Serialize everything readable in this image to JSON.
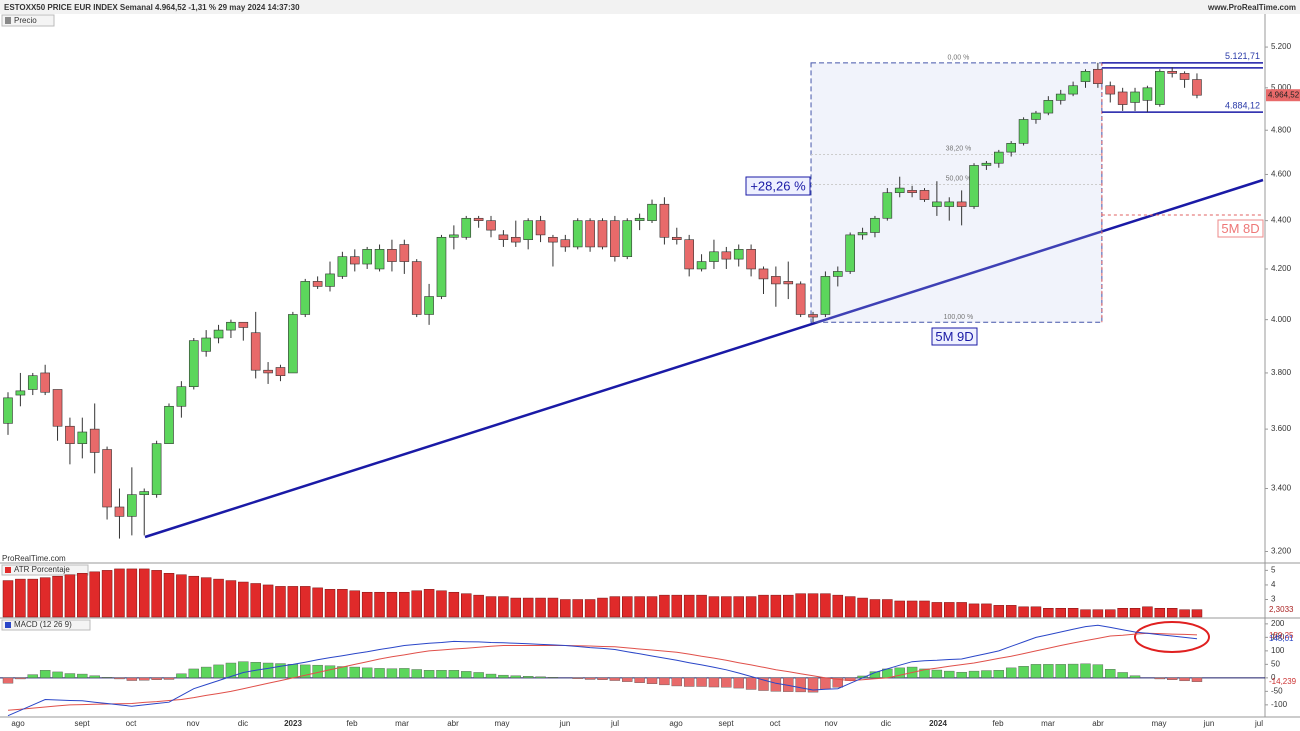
{
  "chart_data": [
    {
      "type": "candlestick",
      "title": "ESTOXX50 PRICE EUR INDEX Semanal 4.964,52 -1,31 % 29 may 2024 14:37:30",
      "source": "www.ProRealTime.com",
      "watermark": "ProRealTime.com",
      "series_label": "Precio",
      "up_color": "#5cd65c",
      "down_color": "#e86a6a",
      "log_scale": true,
      "ylim": [
        3180,
        5363
      ],
      "yticks": [
        {
          "value": 3200,
          "label": "3.200"
        },
        {
          "value": 3400,
          "label": "3.400"
        },
        {
          "value": 3600,
          "label": "3.600"
        },
        {
          "value": 3800,
          "label": "3.800"
        },
        {
          "value": 4000,
          "label": "4.000"
        },
        {
          "value": 4200,
          "label": "4.200"
        },
        {
          "value": 4400,
          "label": "4.400"
        },
        {
          "value": 4600,
          "label": "4.600"
        },
        {
          "value": 4800,
          "label": "4.800"
        },
        {
          "value": 5000,
          "label": "5.000"
        },
        {
          "value": 5200,
          "label": "5.200"
        }
      ],
      "x_labels": [
        "ago",
        "sept",
        "oct",
        "nov",
        "dic",
        "2023",
        "feb",
        "mar",
        "abr",
        "may",
        "jun",
        "jul",
        "ago",
        "sept",
        "oct",
        "nov",
        "dic",
        "2024",
        "feb",
        "mar",
        "abr",
        "may",
        "jun",
        "jul"
      ],
      "open": [
        3620,
        3720,
        3740,
        3800,
        3740,
        3610,
        3550,
        3600,
        3530,
        3340,
        3310,
        3380,
        3380,
        3550,
        3680,
        3750,
        3880,
        3930,
        3960,
        3990,
        3950,
        3810,
        3820,
        3800,
        4020,
        4150,
        4130,
        4170,
        4250,
        4220,
        4200,
        4280,
        4300,
        4230,
        4020,
        4090,
        4330,
        4330,
        4410,
        4400,
        4340,
        4330,
        4320,
        4400,
        4330,
        4320,
        4290,
        4400,
        4400,
        4400,
        4250,
        4400,
        4400,
        4470,
        4330,
        4320,
        4200,
        4230,
        4270,
        4240,
        4280,
        4200,
        4170,
        4150,
        4140,
        4020,
        4020,
        4170,
        4190,
        4340,
        4350,
        4410,
        4520,
        4530,
        4530,
        4460,
        4460,
        4480,
        4460,
        4640,
        4650,
        4700,
        4740,
        4850,
        4880,
        4940,
        4970,
        5030,
        5090,
        5010,
        4980,
        4930,
        4940,
        4920,
        5080,
        5070,
        5040
      ],
      "high": [
        3730,
        3800,
        3800,
        3830,
        3740,
        3640,
        3640,
        3690,
        3540,
        3400,
        3470,
        3400,
        3560,
        3690,
        3770,
        3930,
        3960,
        3980,
        4000,
        3990,
        4030,
        3840,
        3830,
        4030,
        4160,
        4170,
        4230,
        4270,
        4280,
        4290,
        4300,
        4320,
        4320,
        4240,
        4140,
        4340,
        4380,
        4420,
        4420,
        4420,
        4360,
        4400,
        4410,
        4420,
        4340,
        4340,
        4410,
        4410,
        4410,
        4420,
        4410,
        4430,
        4490,
        4500,
        4370,
        4340,
        4260,
        4320,
        4290,
        4300,
        4300,
        4210,
        4210,
        4230,
        4150,
        4030,
        4190,
        4210,
        4350,
        4370,
        4420,
        4540,
        4590,
        4550,
        4540,
        4570,
        4500,
        4530,
        4650,
        4660,
        4710,
        4750,
        4860,
        4890,
        4960,
        4990,
        5030,
        5090,
        5121.71,
        5030,
        5000,
        5000,
        5010,
        5090,
        5100,
        5080,
        5070
      ],
      "low": [
        3580,
        3680,
        3720,
        3720,
        3560,
        3480,
        3500,
        3450,
        3300,
        3240,
        3250,
        3250,
        3370,
        3550,
        3640,
        3740,
        3860,
        3910,
        3930,
        3920,
        3780,
        3760,
        3770,
        3800,
        4010,
        4120,
        4110,
        4160,
        4190,
        4200,
        4190,
        4190,
        4180,
        4010,
        3980,
        4080,
        4280,
        4320,
        4370,
        4330,
        4290,
        4290,
        4280,
        4310,
        4210,
        4270,
        4280,
        4270,
        4280,
        4230,
        4240,
        4360,
        4390,
        4300,
        4300,
        4170,
        4190,
        4200,
        4200,
        4210,
        4170,
        4100,
        4050,
        4080,
        4010,
        3990,
        4010,
        4130,
        4180,
        4320,
        4330,
        4400,
        4500,
        4500,
        4480,
        4420,
        4400,
        4380,
        4450,
        4620,
        4630,
        4680,
        4730,
        4830,
        4870,
        4920,
        4960,
        5000,
        5000,
        4930,
        4890,
        4890,
        4884.12,
        4910,
        5050,
        5000,
        4950
      ],
      "close": [
        3710,
        3735,
        3790,
        3730,
        3610,
        3550,
        3590,
        3520,
        3340,
        3310,
        3380,
        3390,
        3550,
        3680,
        3750,
        3920,
        3930,
        3960,
        3990,
        3970,
        3810,
        3800,
        3790,
        4020,
        4150,
        4130,
        4180,
        4250,
        4220,
        4280,
        4280,
        4230,
        4230,
        4020,
        4090,
        4330,
        4340,
        4410,
        4400,
        4360,
        4320,
        4310,
        4400,
        4340,
        4310,
        4290,
        4400,
        4290,
        4290,
        4250,
        4400,
        4410,
        4470,
        4330,
        4320,
        4200,
        4230,
        4270,
        4240,
        4280,
        4200,
        4160,
        4140,
        4140,
        4020,
        4010,
        4170,
        4190,
        4340,
        4350,
        4410,
        4520,
        4540,
        4520,
        4490,
        4480,
        4480,
        4460,
        4640,
        4650,
        4700,
        4740,
        4850,
        4880,
        4940,
        4970,
        5010,
        5080,
        5020,
        4970,
        4920,
        4980,
        5000,
        5080,
        5070,
        5040,
        4964.52
      ],
      "price_labels": [
        {
          "value": 5121.71,
          "label": "5.121,71"
        },
        {
          "value": 4884.12,
          "label": "4.884,12"
        }
      ],
      "last_price": {
        "value": 4964.52,
        "label": "4.964,52"
      },
      "fibonacci": [
        {
          "value": 0,
          "label": "0,00 %"
        },
        {
          "value": 38.2,
          "label": "38,20 %"
        },
        {
          "value": 50,
          "label": "50,00 %"
        },
        {
          "value": 100,
          "label": "100,00 %"
        }
      ],
      "annotations": [
        "+28,26 %",
        "5M 9D",
        "5M 8D"
      ]
    },
    {
      "type": "bar",
      "title": "ATR Porcentaje",
      "color": "#e02a2a",
      "ylim": [
        1.8,
        5.3
      ],
      "yticks": [
        3,
        4,
        5
      ],
      "values": [
        4.3,
        4.4,
        4.4,
        4.5,
        4.6,
        4.7,
        4.8,
        4.9,
        5.0,
        5.1,
        5.1,
        5.1,
        5.0,
        4.8,
        4.7,
        4.6,
        4.5,
        4.4,
        4.3,
        4.2,
        4.1,
        4.0,
        3.9,
        3.9,
        3.9,
        3.8,
        3.7,
        3.7,
        3.6,
        3.5,
        3.5,
        3.5,
        3.5,
        3.6,
        3.7,
        3.6,
        3.5,
        3.4,
        3.3,
        3.2,
        3.2,
        3.1,
        3.1,
        3.1,
        3.1,
        3.0,
        3.0,
        3.0,
        3.1,
        3.2,
        3.2,
        3.2,
        3.2,
        3.3,
        3.3,
        3.3,
        3.3,
        3.2,
        3.2,
        3.2,
        3.2,
        3.3,
        3.3,
        3.3,
        3.4,
        3.4,
        3.4,
        3.3,
        3.2,
        3.1,
        3.0,
        3.0,
        2.9,
        2.9,
        2.9,
        2.8,
        2.8,
        2.8,
        2.7,
        2.7,
        2.6,
        2.6,
        2.5,
        2.5,
        2.4,
        2.4,
        2.4,
        2.3,
        2.3,
        2.3,
        2.4,
        2.4,
        2.5,
        2.4,
        2.4,
        2.3,
        2.3033
      ],
      "last_label": {
        "value": 2.3033,
        "label": "2,3033"
      }
    },
    {
      "type": "macd",
      "title": "MACD (12 26 9)",
      "macd_color": "#2a46c8",
      "signal_color": "#e0504a",
      "up_color": "#5cd65c",
      "down_color": "#e86a6a",
      "ylim": [
        -145,
        218
      ],
      "yticks": [
        -100,
        -50,
        0,
        50,
        100,
        150,
        200
      ],
      "macd": [
        -140,
        -120,
        -100,
        -80,
        -82,
        -84,
        -85,
        -90,
        -95,
        -100,
        -105,
        -100,
        -95,
        -90,
        -65,
        -40,
        -25,
        -10,
        5,
        20,
        28,
        35,
        43,
        50,
        58,
        67,
        75,
        82,
        90,
        97,
        105,
        112,
        120,
        124,
        128,
        131,
        135,
        134,
        133,
        131,
        130,
        128,
        126,
        124,
        122,
        120,
        116,
        112,
        109,
        105,
        97,
        89,
        81,
        73,
        65,
        56,
        48,
        39,
        30,
        18,
        5,
        -8,
        -20,
        -28,
        -37,
        -45,
        -42,
        -40,
        -20,
        0,
        20,
        33,
        47,
        60,
        63,
        65,
        68,
        70,
        80,
        90,
        100,
        117,
        133,
        150,
        160,
        170,
        180,
        190,
        195,
        187,
        178,
        170,
        165,
        160,
        155,
        150,
        145.01
      ],
      "signal": [
        -120,
        -116,
        -112,
        -108,
        -104,
        -100,
        -99,
        -98,
        -97,
        -96,
        -95,
        -91,
        -88,
        -84,
        -80,
        -73,
        -65,
        -58,
        -50,
        -40,
        -30,
        -20,
        -10,
        0,
        10,
        20,
        30,
        40,
        50,
        60,
        70,
        78,
        85,
        93,
        100,
        103,
        107,
        110,
        113,
        117,
        120,
        120,
        120,
        120,
        120,
        120,
        119,
        118,
        116,
        115,
        111,
        107,
        103,
        99,
        95,
        88,
        80,
        73,
        65,
        56,
        48,
        39,
        30,
        23,
        15,
        8,
        0,
        -5,
        -10,
        -7,
        -3,
        0,
        10,
        20,
        30,
        36,
        43,
        49,
        55,
        63,
        72,
        80,
        90,
        100,
        110,
        120,
        129,
        138,
        146,
        155,
        158,
        162,
        165,
        164,
        162,
        161,
        159.25
      ],
      "histogram": [
        -20,
        -4,
        12,
        28,
        22,
        16,
        14,
        8,
        2,
        -4,
        -10,
        -9,
        -7,
        -6,
        15,
        33,
        40,
        48,
        55,
        60,
        58,
        55,
        53,
        50,
        48,
        47,
        45,
        42,
        40,
        37,
        35,
        34,
        35,
        31,
        28,
        28,
        28,
        24,
        20,
        14,
        10,
        8,
        6,
        4,
        2,
        0,
        -3,
        -6,
        -7,
        -10,
        -14,
        -18,
        -22,
        -26,
        -30,
        -32,
        -32,
        -34,
        -35,
        -38,
        -43,
        -47,
        -50,
        -51,
        -52,
        -53,
        -42,
        -35,
        -10,
        7,
        23,
        33,
        37,
        40,
        33,
        29,
        25,
        21,
        25,
        27,
        28,
        37,
        43,
        50,
        50,
        50,
        51,
        52,
        49,
        32,
        20,
        8,
        0,
        -4,
        -7,
        -11,
        -14.239
      ],
      "last_labels": [
        {
          "value": 159.25,
          "label": "159,25"
        },
        {
          "value": 145.01,
          "label": "145,01"
        },
        {
          "value": -14.239,
          "label": "-14,239"
        }
      ]
    }
  ]
}
